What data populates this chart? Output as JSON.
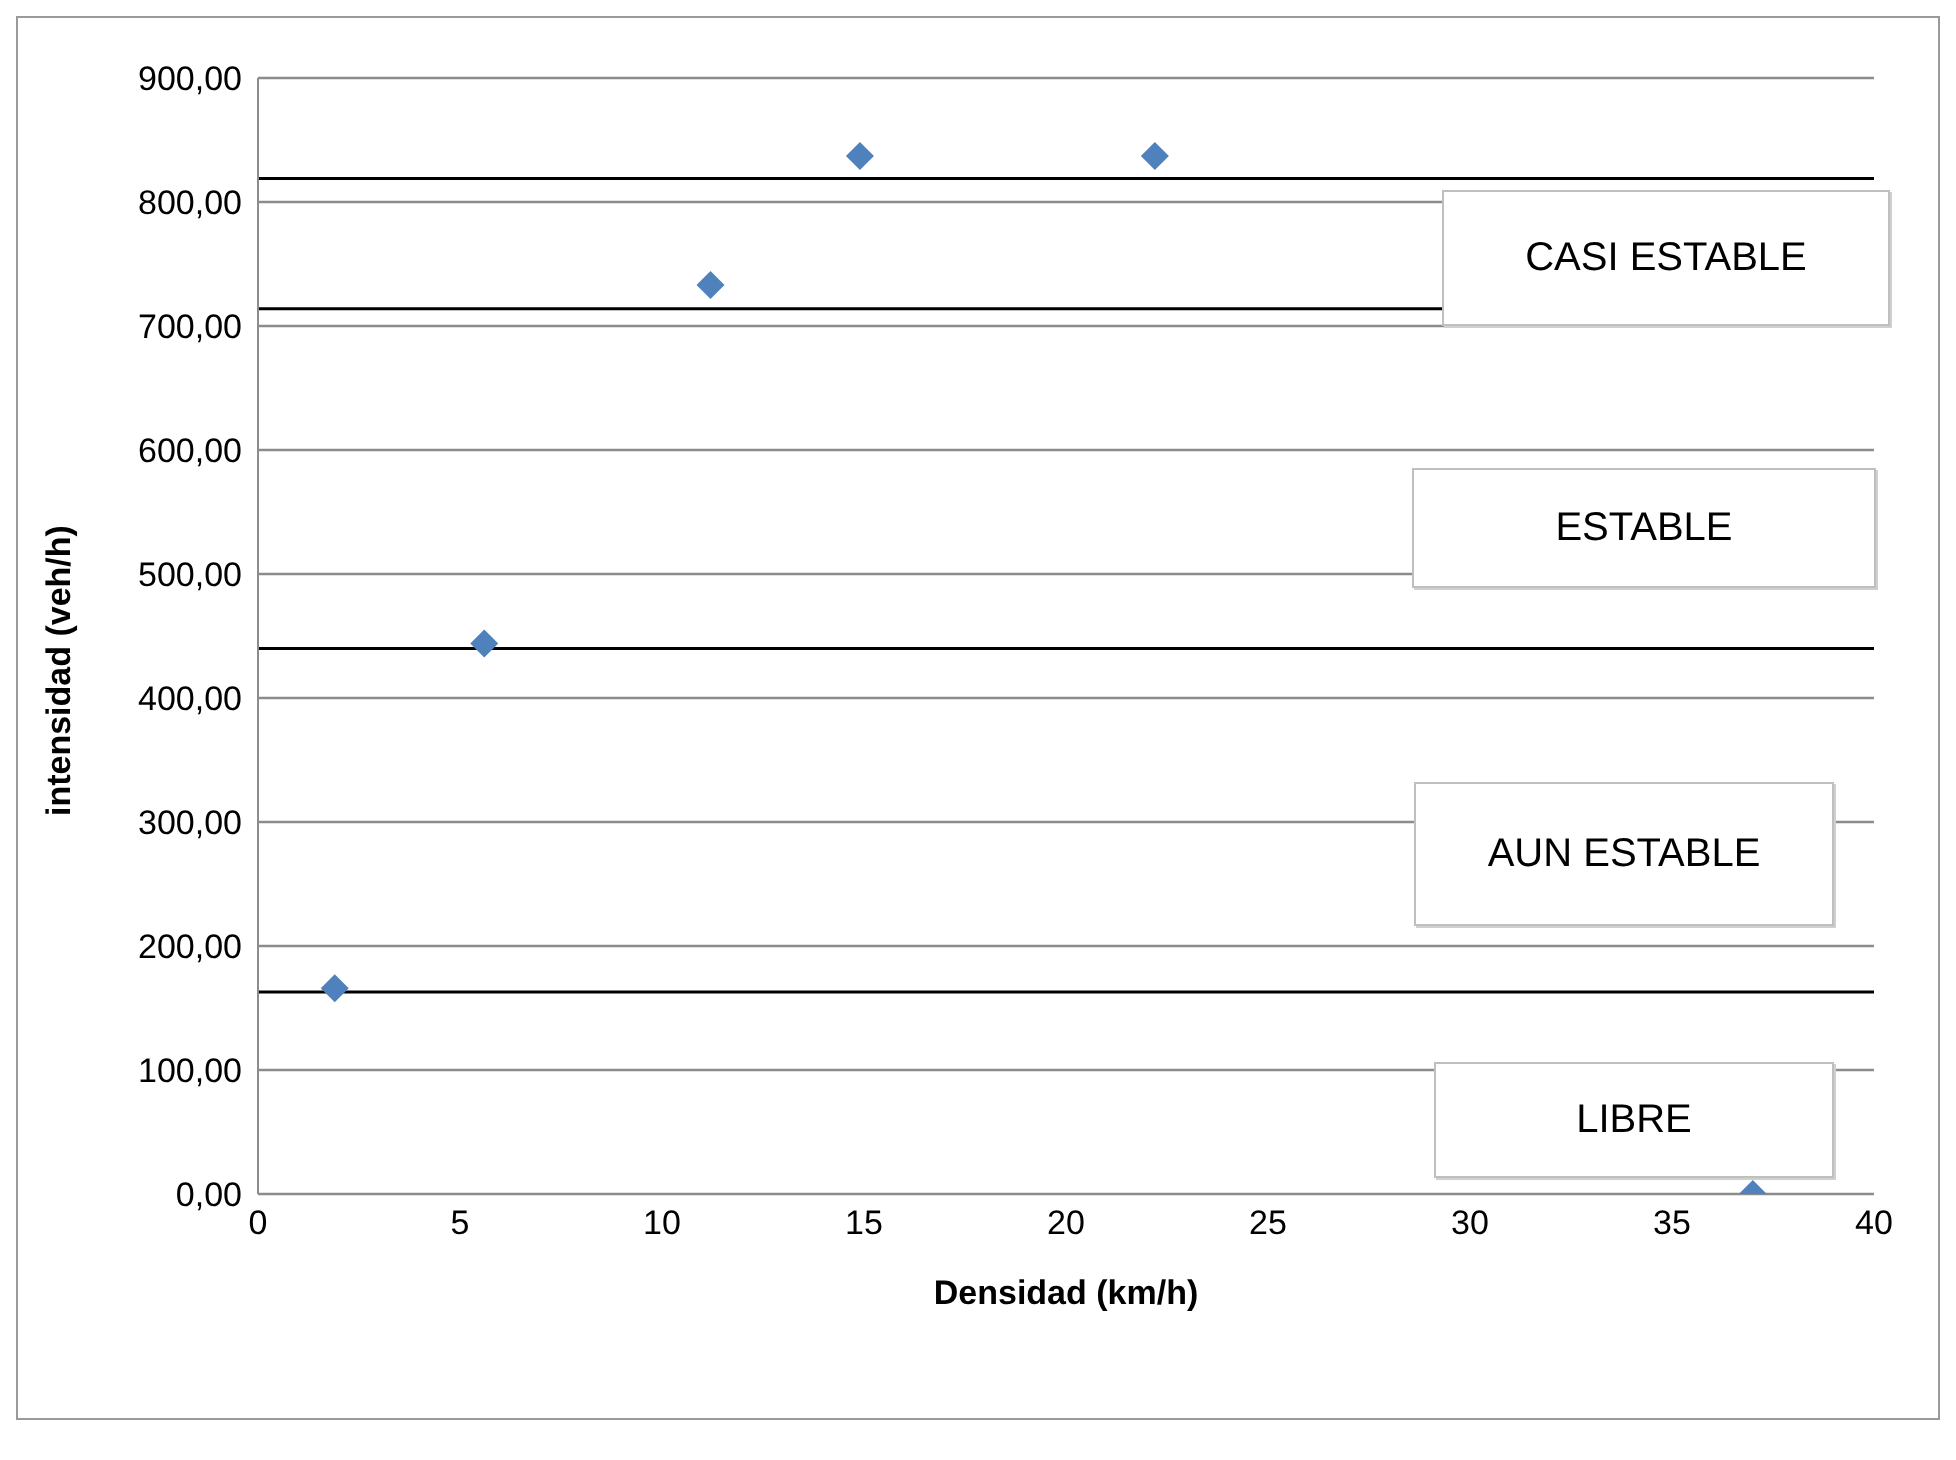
{
  "chart_data": {
    "type": "scatter",
    "xlabel": "Densidad (km/h)",
    "ylabel": "intensidad (veh/h)",
    "x": [
      1.9,
      5.6,
      11.2,
      14.9,
      22.2,
      37
    ],
    "series": [
      {
        "color": "#4f81bd",
        "values": [
          166,
          444,
          733,
          837,
          837,
          0
        ]
      }
    ],
    "xlim": [
      0,
      40
    ],
    "xticks": [
      0,
      5,
      10,
      15,
      20,
      25,
      30,
      35,
      40
    ],
    "ylim": [
      0,
      900
    ],
    "yticks": [
      {
        "value": 0,
        "label": "0,00"
      },
      {
        "value": 100,
        "label": "100,00"
      },
      {
        "value": 200,
        "label": "200,00"
      },
      {
        "value": 300,
        "label": "300,00"
      },
      {
        "value": 400,
        "label": "400,00"
      },
      {
        "value": 500,
        "label": "500,00"
      },
      {
        "value": 600,
        "label": "600,00"
      },
      {
        "value": 700,
        "label": "700,00"
      },
      {
        "value": 800,
        "label": "800,00"
      },
      {
        "value": 900,
        "label": "900,00"
      }
    ],
    "grid": "y",
    "marker": "diamond",
    "legend": false,
    "ref_lines": [
      {
        "axis": "y",
        "value": 163,
        "color": "#000000"
      },
      {
        "axis": "y",
        "value": 440,
        "color": "#000000"
      },
      {
        "axis": "y",
        "value": 714,
        "color": "#000000"
      },
      {
        "axis": "y",
        "value": 819,
        "color": "#000000"
      }
    ],
    "annotations": [
      "CASI ESTABLE",
      "ESTABLE",
      "AUN ESTABLE",
      "LIBRE"
    ]
  }
}
